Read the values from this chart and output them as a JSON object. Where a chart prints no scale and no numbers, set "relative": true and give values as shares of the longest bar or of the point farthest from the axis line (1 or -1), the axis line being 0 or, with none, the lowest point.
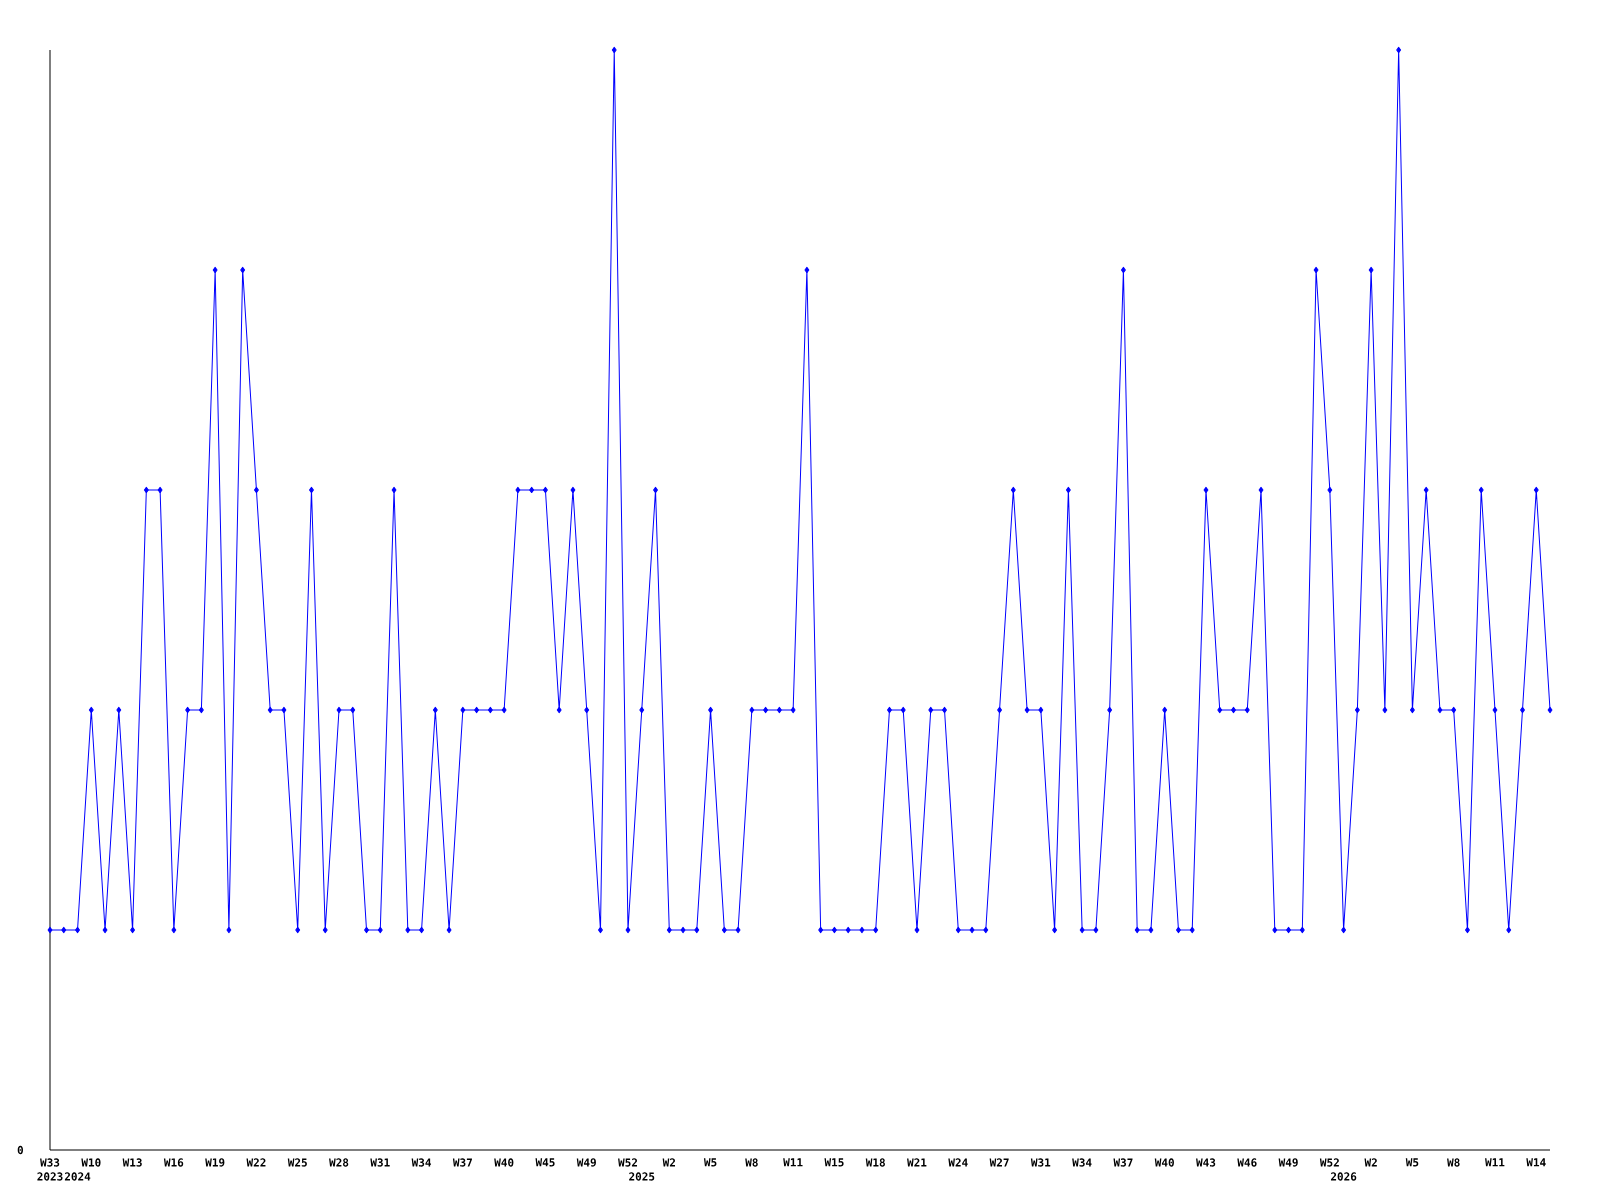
{
  "chart_data": {
    "type": "line",
    "relative": true,
    "color": "#0000ff",
    "marker": "diamond",
    "line_style": "solid",
    "categories": [
      "W33",
      null,
      "2024",
      "W10",
      null,
      null,
      "W13",
      null,
      null,
      "W16",
      null,
      null,
      "W19",
      null,
      null,
      "W22",
      null,
      null,
      "W25",
      null,
      null,
      "W28",
      null,
      null,
      "W31",
      null,
      null,
      "W34",
      null,
      null,
      "W37",
      null,
      null,
      "W40",
      null,
      null,
      "W45",
      null,
      null,
      "W49",
      null,
      null,
      "W52",
      "2025",
      null,
      "W2",
      null,
      null,
      "W5",
      null,
      null,
      "W8",
      null,
      null,
      "W11",
      null,
      null,
      "W15",
      null,
      null,
      "W18",
      null,
      null,
      "W21",
      null,
      null,
      "W24",
      null,
      null,
      "W27",
      null,
      null,
      "W31",
      null,
      null,
      "W34",
      null,
      null,
      "W37",
      null,
      null,
      "W40",
      null,
      null,
      "W43",
      null,
      null,
      "W46",
      null,
      null,
      "W49",
      null,
      null,
      "W52",
      "2026",
      null,
      "W2",
      null,
      null,
      "W5",
      null,
      null,
      "W8",
      null,
      null,
      "W11",
      null,
      null,
      "W14",
      null
    ],
    "values": [
      0.2,
      0.2,
      0.2,
      0.4,
      0.2,
      0.4,
      0.2,
      0.6,
      0.6,
      0.2,
      0.4,
      0.4,
      0.8,
      0.2,
      0.8,
      0.6,
      0.4,
      0.4,
      0.2,
      0.6,
      0.2,
      0.4,
      0.4,
      0.2,
      0.2,
      0.6,
      0.2,
      0.2,
      0.4,
      0.2,
      0.4,
      0.4,
      0.4,
      0.4,
      0.6,
      0.6,
      0.6,
      0.4,
      0.6,
      0.4,
      0.2,
      1,
      0.2,
      0.4,
      0.6,
      0.2,
      0.2,
      0.2,
      0.4,
      0.2,
      0.2,
      0.4,
      0.4,
      0.4,
      0.4,
      0.8,
      0.2,
      0.2,
      0.2,
      0.2,
      0.2,
      0.4,
      0.4,
      0.2,
      0.4,
      0.4,
      0.2,
      0.2,
      0.2,
      0.4,
      0.6,
      0.4,
      0.4,
      0.2,
      0.6,
      0.2,
      0.2,
      0.4,
      0.8,
      0.2,
      0.2,
      0.4,
      0.2,
      0.2,
      0.6,
      0.4,
      0.4,
      0.4,
      0.6,
      0.2,
      0.2,
      0.2,
      0.8,
      0.6,
      0.2,
      0.4,
      0.8,
      0.4,
      1,
      0.4,
      0.6,
      0.4,
      0.4,
      0.2,
      0.6,
      0.4,
      0.2,
      0.4,
      0.6,
      0.4
    ],
    "annotations": [
      "2023",
      "0"
    ]
  }
}
